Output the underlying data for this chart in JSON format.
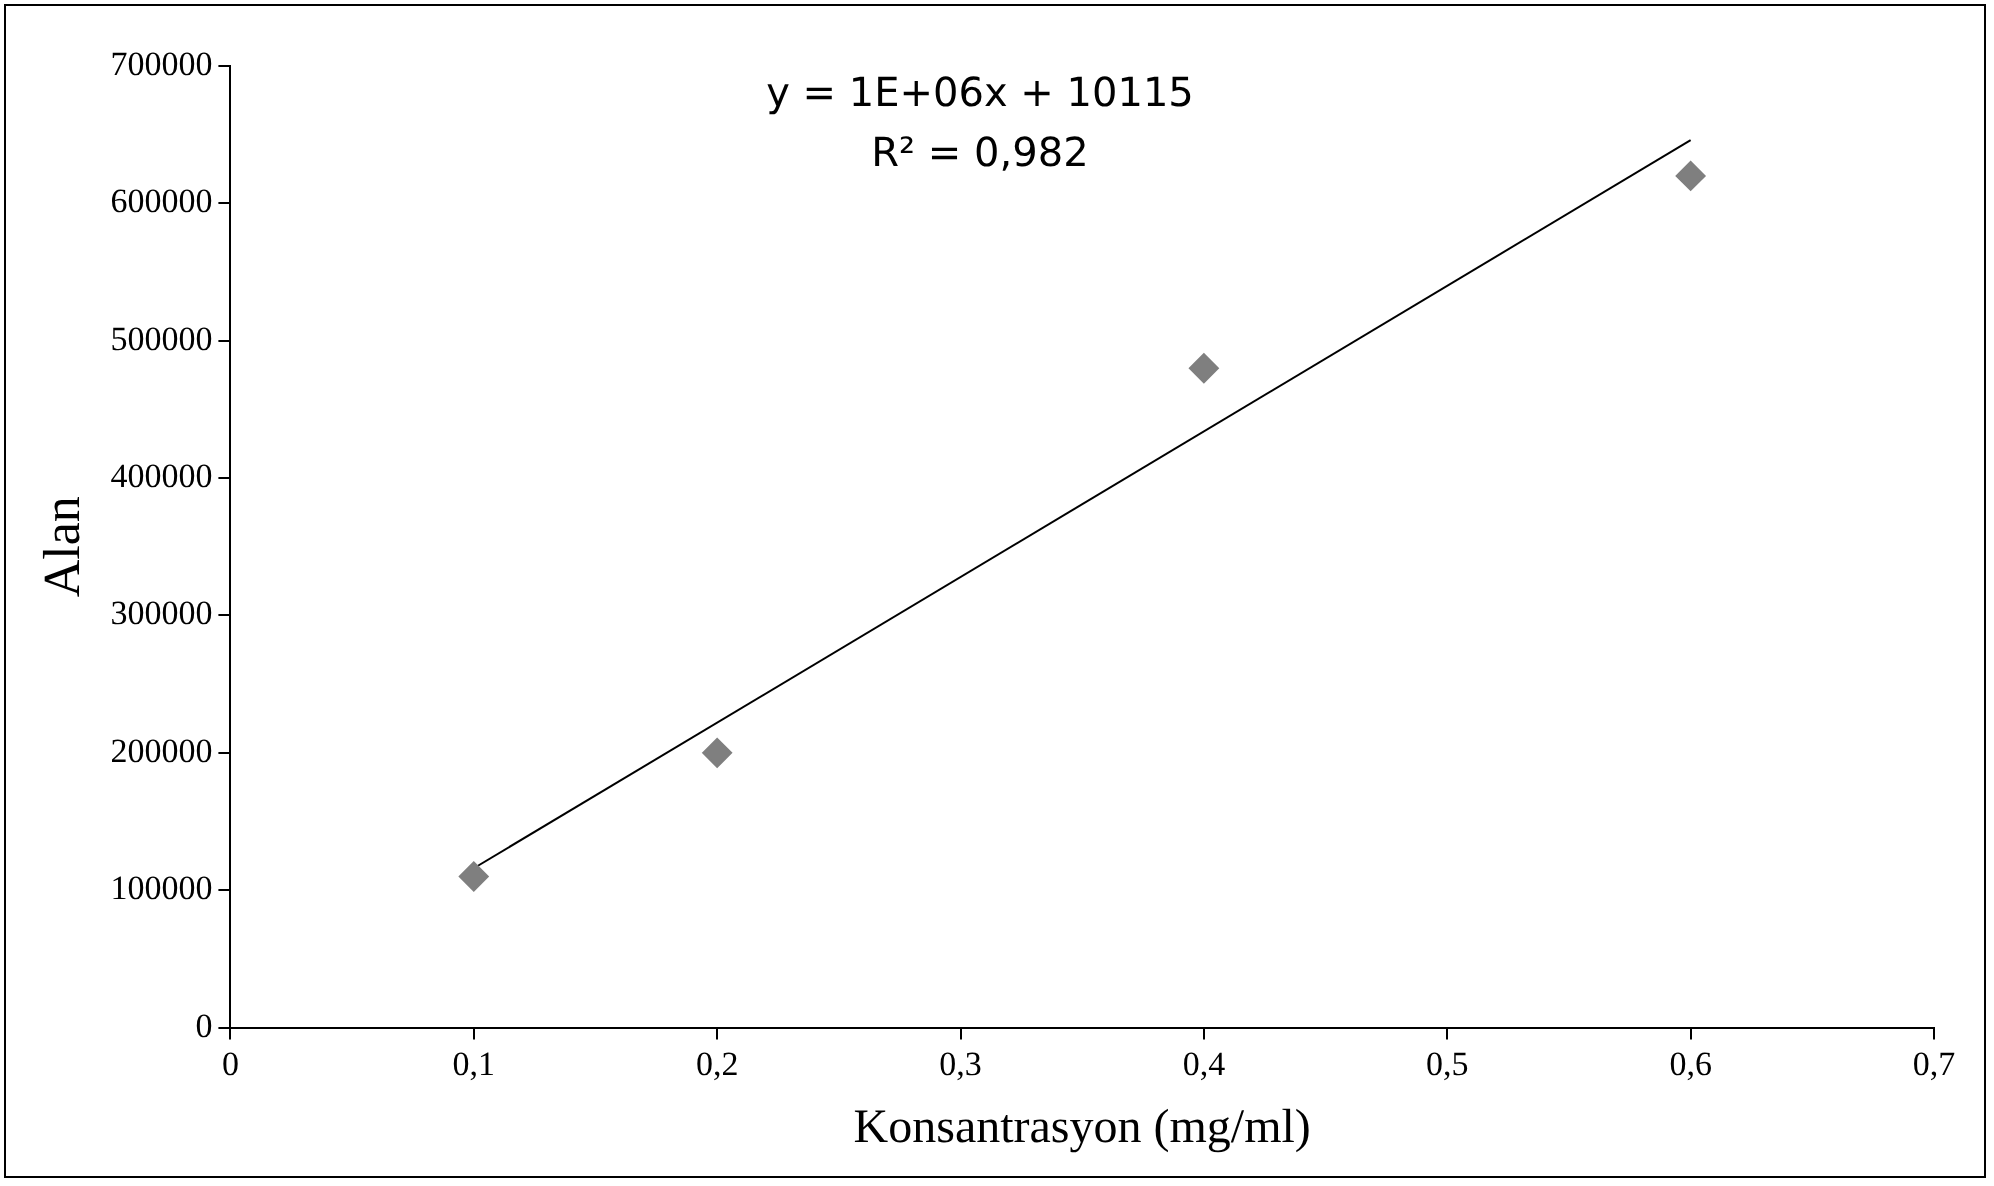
{
  "chart_data": {
    "type": "scatter",
    "xlabel": "Konsantrasyon (mg/ml)",
    "ylabel": "Alan",
    "annotations": [
      "y = 1E+06x + 10115",
      "R² = 0,982"
    ],
    "series": [
      {
        "type": "scatter",
        "color": "#7f7f7f",
        "marker": "diamond",
        "x": [
          0.1,
          0.2,
          0.4,
          0.6
        ],
        "values": [
          110000,
          200000,
          480000,
          620000
        ]
      },
      {
        "type": "line",
        "color": "#000000",
        "marker": "none",
        "x": [
          0.1,
          0.6
        ],
        "values": [
          116000,
          646000
        ]
      }
    ],
    "xlim": [
      0,
      0.7
    ],
    "xticks": [
      0,
      {
        "value": 0.1,
        "label": "0,1"
      },
      {
        "value": 0.2,
        "label": "0,2"
      },
      {
        "value": 0.3,
        "label": "0,3"
      },
      {
        "value": 0.4,
        "label": "0,4"
      },
      {
        "value": 0.5,
        "label": "0,5"
      },
      {
        "value": 0.6,
        "label": "0,6"
      },
      {
        "value": 0.7,
        "label": "0,7"
      }
    ],
    "ylim": [
      0,
      700000
    ],
    "yticks": [
      0,
      100000,
      200000,
      300000,
      400000,
      500000,
      600000,
      700000
    ],
    "grid": false,
    "legend": false
  }
}
